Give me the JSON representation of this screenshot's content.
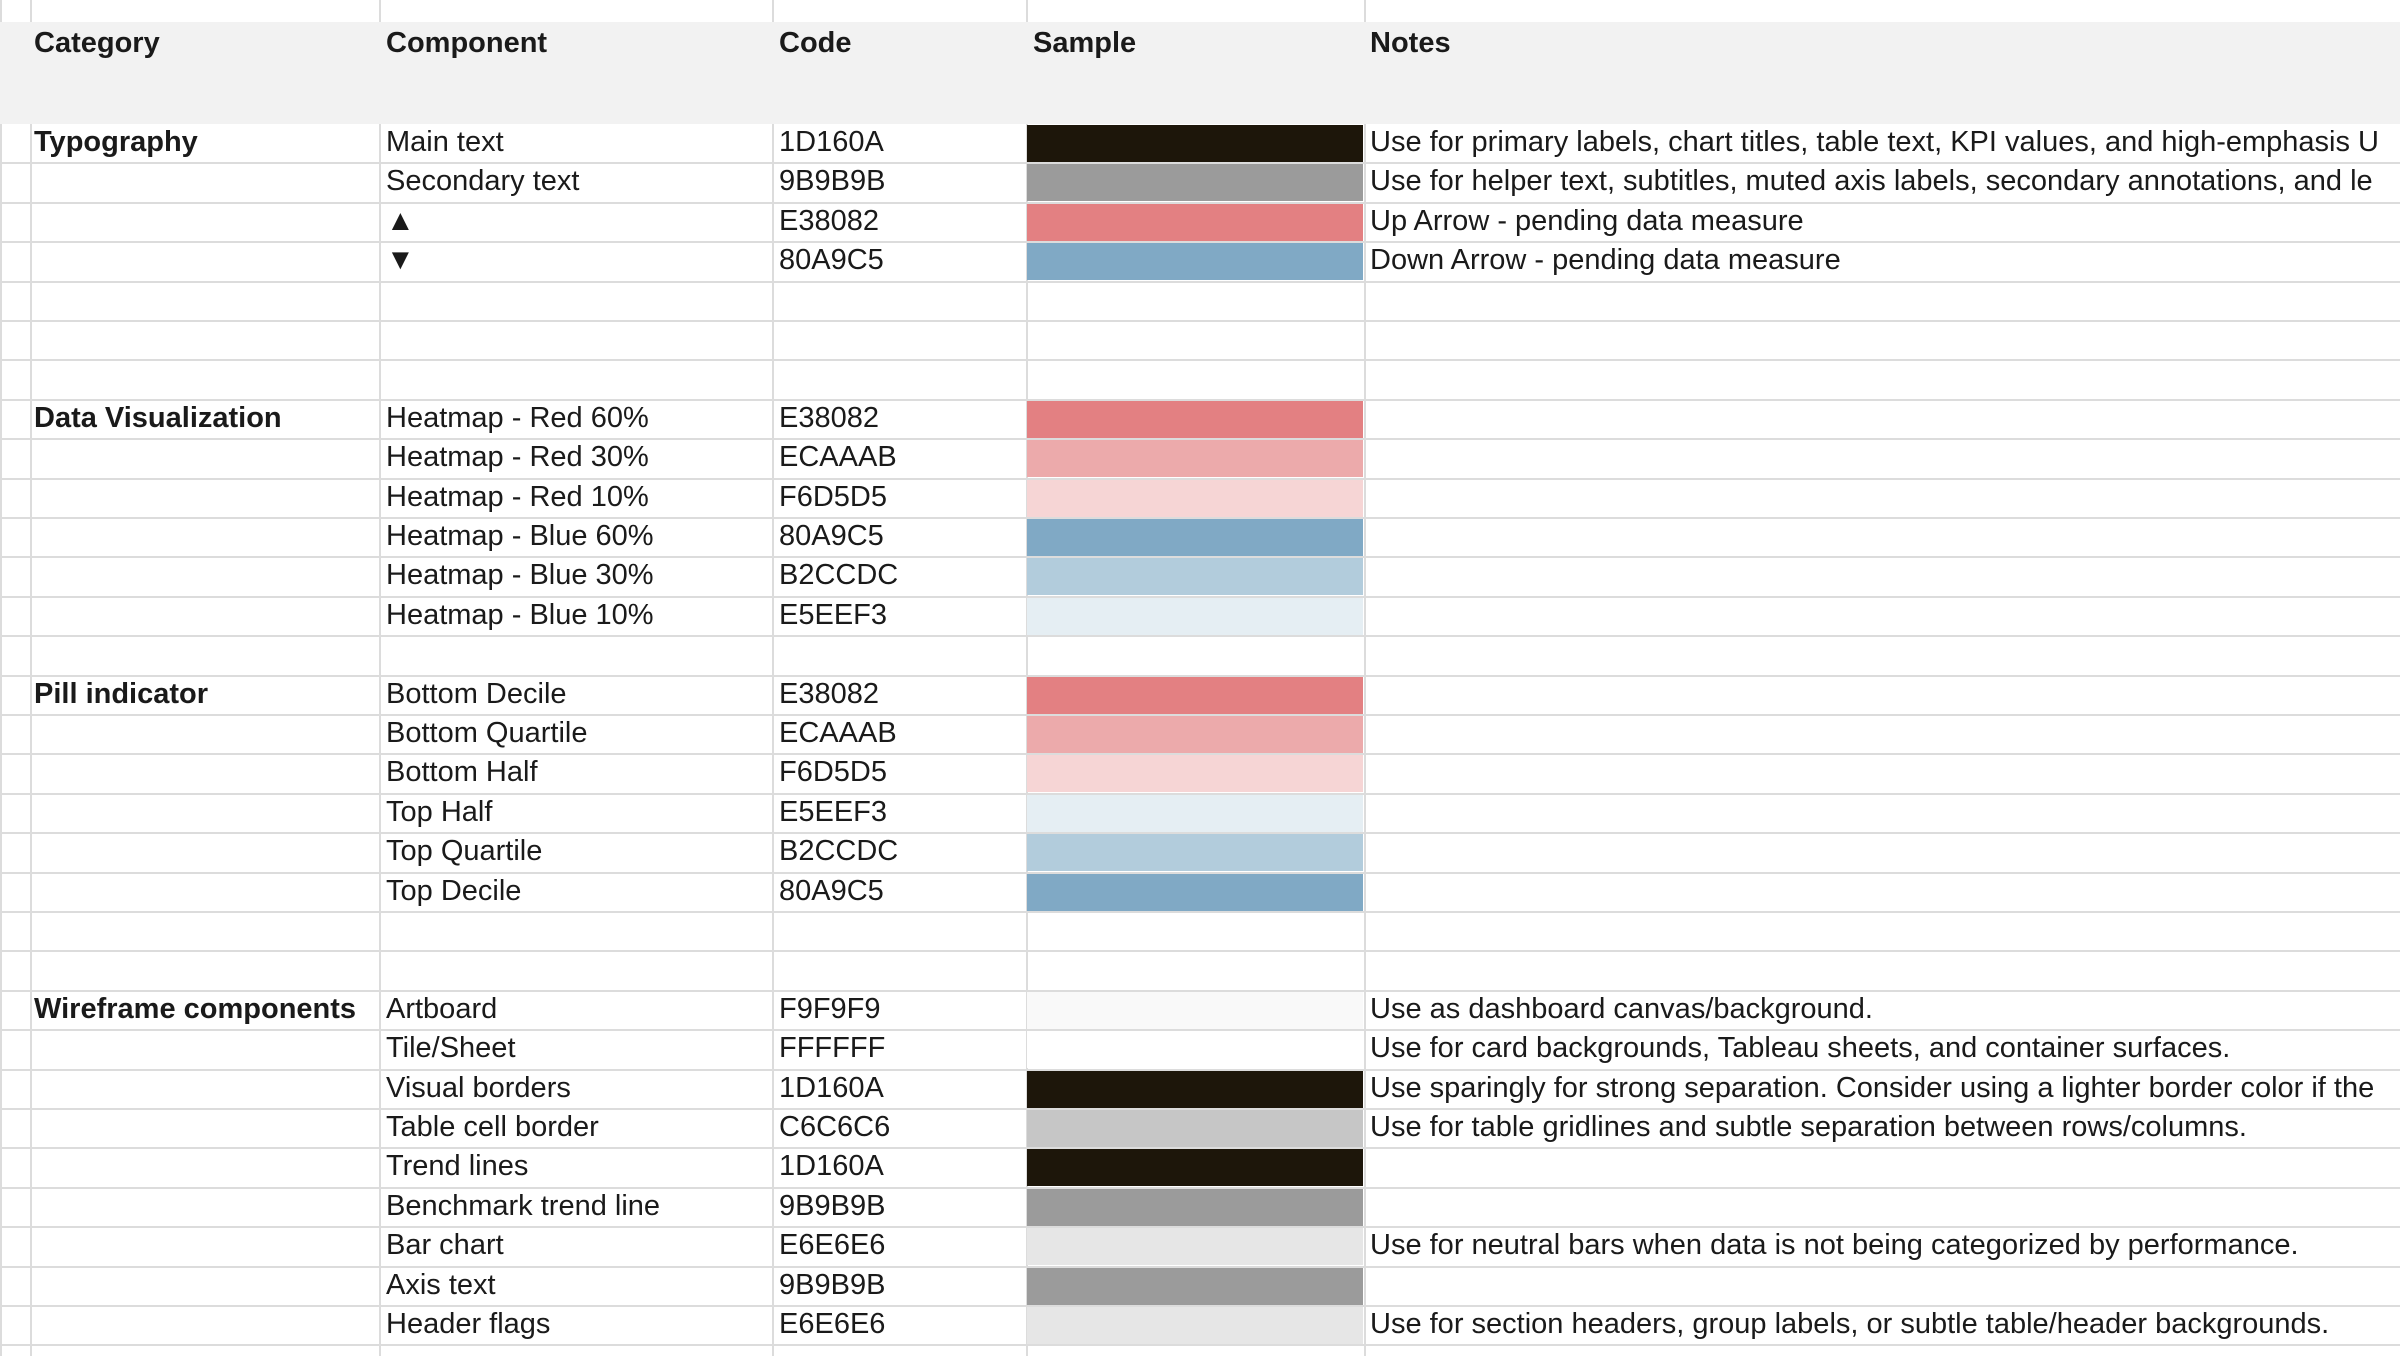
{
  "headers": {
    "category": "Category",
    "component": "Component",
    "code": "Code",
    "sample": "Sample",
    "notes": "Notes"
  },
  "rows": [
    {
      "category": "Typography",
      "component": "Main text",
      "code": "1D160A",
      "color": "#1D160A",
      "notes": "Use for primary labels, chart titles, table text, KPI values, and high-emphasis U"
    },
    {
      "category": "",
      "component": "Secondary text",
      "code": "9B9B9B",
      "color": "#9B9B9B",
      "notes": "Use for helper text, subtitles, muted axis labels, secondary annotations, and le"
    },
    {
      "category": "",
      "component": "▲",
      "code": "E38082",
      "color": "#E38082",
      "notes": "Up Arrow - pending data measure"
    },
    {
      "category": "",
      "component": "▼",
      "code": "80A9C5",
      "color": "#80A9C5",
      "notes": "Down Arrow - pending data measure"
    },
    {
      "category": "",
      "component": "",
      "code": "",
      "color": "",
      "notes": ""
    },
    {
      "category": "",
      "component": "",
      "code": "",
      "color": "",
      "notes": ""
    },
    {
      "category": "",
      "component": "",
      "code": "",
      "color": "",
      "notes": ""
    },
    {
      "category": "Data Visualization",
      "component": "Heatmap - Red 60%",
      "code": "E38082",
      "color": "#E38082",
      "notes": ""
    },
    {
      "category": "",
      "component": "Heatmap - Red 30%",
      "code": "ECAAAB",
      "color": "#ECAAAB",
      "notes": ""
    },
    {
      "category": "",
      "component": "Heatmap - Red 10%",
      "code": "F6D5D5",
      "color": "#F6D5D5",
      "notes": ""
    },
    {
      "category": "",
      "component": "Heatmap - Blue 60%",
      "code": "80A9C5",
      "color": "#80A9C5",
      "notes": ""
    },
    {
      "category": "",
      "component": "Heatmap - Blue 30%",
      "code": "B2CCDC",
      "color": "#B2CCDC",
      "notes": ""
    },
    {
      "category": "",
      "component": "Heatmap - Blue 10%",
      "code": "E5EEF3",
      "color": "#E5EEF3",
      "notes": ""
    },
    {
      "category": "",
      "component": "",
      "code": "",
      "color": "",
      "notes": ""
    },
    {
      "category": "Pill indicator",
      "component": "Bottom Decile",
      "code": "E38082",
      "color": "#E38082",
      "notes": ""
    },
    {
      "category": "",
      "component": "Bottom Quartile",
      "code": "ECAAAB",
      "color": "#ECAAAB",
      "notes": ""
    },
    {
      "category": "",
      "component": "Bottom Half",
      "code": "F6D5D5",
      "color": "#F6D5D5",
      "notes": ""
    },
    {
      "category": "",
      "component": "Top Half",
      "code": "E5EEF3",
      "color": "#E5EEF3",
      "notes": ""
    },
    {
      "category": "",
      "component": "Top Quartile",
      "code": "B2CCDC",
      "color": "#B2CCDC",
      "notes": ""
    },
    {
      "category": "",
      "component": "Top Decile",
      "code": "80A9C5",
      "color": "#80A9C5",
      "notes": ""
    },
    {
      "category": "",
      "component": "",
      "code": "",
      "color": "",
      "notes": ""
    },
    {
      "category": "",
      "component": "",
      "code": "",
      "color": "",
      "notes": ""
    },
    {
      "category": "Wireframe components",
      "component": "Artboard",
      "code": "F9F9F9",
      "color": "#F9F9F9",
      "notes": "Use as dashboard canvas/background."
    },
    {
      "category": "",
      "component": "Tile/Sheet",
      "code": "FFFFFF",
      "color": "#FFFFFF",
      "notes": "Use for card backgrounds, Tableau sheets, and container surfaces."
    },
    {
      "category": "",
      "component": "Visual borders",
      "code": "1D160A",
      "color": "#1D160A",
      "notes": "Use sparingly for strong separation. Consider using a lighter border color if the"
    },
    {
      "category": "",
      "component": "Table cell border",
      "code": "C6C6C6",
      "color": "#C6C6C6",
      "notes": "Use for table gridlines and subtle separation between rows/columns."
    },
    {
      "category": "",
      "component": "Trend lines",
      "code": "1D160A",
      "color": "#1D160A",
      "notes": ""
    },
    {
      "category": "",
      "component": "Benchmark trend line",
      "code": "9B9B9B",
      "color": "#9B9B9B",
      "notes": ""
    },
    {
      "category": "",
      "component": "Bar chart",
      "code": "E6E6E6",
      "color": "#E6E6E6",
      "notes": "Use for neutral bars when data is not being categorized by performance."
    },
    {
      "category": "",
      "component": "Axis text",
      "code": "9B9B9B",
      "color": "#9B9B9B",
      "notes": ""
    },
    {
      "category": "",
      "component": "Header flags",
      "code": "E6E6E6",
      "color": "#E6E6E6",
      "notes": "Use for section headers, group labels, or subtle table/header backgrounds."
    }
  ]
}
